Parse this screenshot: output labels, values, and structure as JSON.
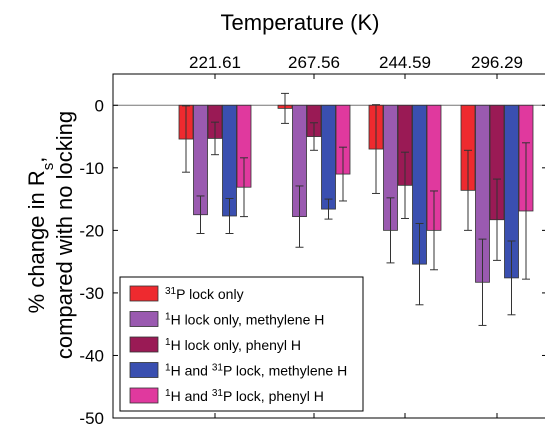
{
  "chart_data": {
    "type": "bar",
    "title": "Temperature (K)",
    "categories": [
      "221.61",
      "267.56",
      "244.59",
      "296.29"
    ],
    "ylabel_line1": "% change in Rs,",
    "ylabel_line1_main": "% change in R",
    "ylabel_line1_sub": "s",
    "ylabel_line1_tail": ",",
    "ylabel_line2": "compared with no locking",
    "xlabel": "",
    "ylim": [
      -50,
      5
    ],
    "yticks": [
      0,
      -10,
      -20,
      -30,
      -40,
      -50
    ],
    "ytick_labels": [
      "0",
      "-10",
      "-20",
      "-30",
      "-40",
      "-50"
    ],
    "grid": false,
    "legend_position": "bottom-left",
    "series": [
      {
        "name": "31P lock only",
        "legend_parts": [
          {
            "sup": "31"
          },
          {
            "text": "P lock only"
          }
        ],
        "color": "#ee2a2f",
        "values": [
          -5.4,
          -0.5,
          -7.0,
          -13.6
        ],
        "errors": [
          5.3,
          2.4,
          7.1,
          6.4
        ]
      },
      {
        "name": "1H lock only, methylene H",
        "legend_parts": [
          {
            "sup": "1"
          },
          {
            "text": "H lock only, methylene H"
          }
        ],
        "color": "#9a5ab0",
        "values": [
          -17.5,
          -17.8,
          -20.0,
          -28.3
        ],
        "errors": [
          3.0,
          4.9,
          5.2,
          6.9
        ]
      },
      {
        "name": "1H lock only, phenyl H",
        "legend_parts": [
          {
            "sup": "1"
          },
          {
            "text": "H lock only, phenyl H"
          }
        ],
        "color": "#9a1a55",
        "values": [
          -5.3,
          -5.0,
          -12.8,
          -18.3
        ],
        "errors": [
          2.6,
          2.2,
          5.3,
          6.5
        ]
      },
      {
        "name": "1H and 31P lock, methylene H",
        "legend_parts": [
          {
            "sup": "1"
          },
          {
            "text": "H and "
          },
          {
            "sup": "31"
          },
          {
            "text": "P lock, methylene H"
          }
        ],
        "color": "#3a4fb0",
        "values": [
          -17.7,
          -16.6,
          -25.4,
          -27.6
        ],
        "errors": [
          2.8,
          1.6,
          6.5,
          5.9
        ]
      },
      {
        "name": "1H and 31P lock, phenyl H",
        "legend_parts": [
          {
            "sup": "1"
          },
          {
            "text": "H and "
          },
          {
            "sup": "31"
          },
          {
            "text": "P lock, phenyl H"
          }
        ],
        "color": "#e0399e",
        "values": [
          -13.1,
          -11.0,
          -20.0,
          -16.9
        ],
        "errors": [
          4.7,
          4.3,
          6.3,
          10.9
        ]
      }
    ]
  }
}
